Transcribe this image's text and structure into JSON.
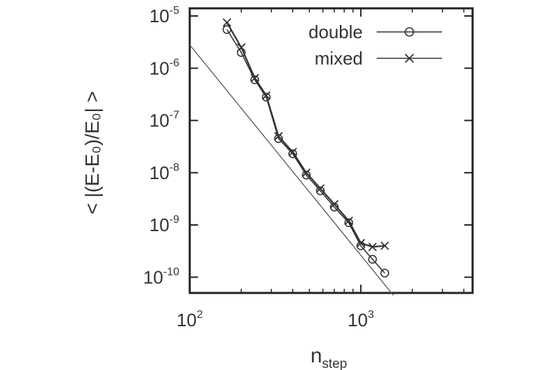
{
  "chart_data": {
    "type": "line",
    "xscale": "log",
    "yscale": "log",
    "xlim": [
      100,
      4500
    ],
    "ylim": [
      5e-11,
      1.4e-05
    ],
    "xticks": [
      {
        "value": 100,
        "base": "10",
        "exp": "2"
      },
      {
        "value": 1000,
        "base": "10",
        "exp": "3"
      }
    ],
    "yticks": [
      {
        "value": 1e-05,
        "base": "10",
        "exp": "-5"
      },
      {
        "value": 1e-06,
        "base": "10",
        "exp": "-6"
      },
      {
        "value": 1e-07,
        "base": "10",
        "exp": "-7"
      },
      {
        "value": 1e-08,
        "base": "10",
        "exp": "-8"
      },
      {
        "value": 1e-09,
        "base": "10",
        "exp": "-9"
      },
      {
        "value": 1e-10,
        "base": "10",
        "exp": "-10"
      }
    ],
    "xlabel": {
      "main": "n",
      "sub": "step"
    },
    "ylabel": "< |(E-E₀)/E₀| >",
    "legend_position": "top-right",
    "grid": false,
    "series": [
      {
        "name": "double",
        "marker": "circle",
        "x": [
          165,
          200,
          240,
          280,
          330,
          400,
          480,
          580,
          700,
          850,
          1000,
          1170,
          1380
        ],
        "y": [
          5.5e-06,
          2e-06,
          6e-07,
          2.8e-07,
          4.5e-08,
          2.3e-08,
          9e-09,
          4.5e-09,
          2.2e-09,
          1.1e-09,
          4e-10,
          2.2e-10,
          1.2e-10
        ]
      },
      {
        "name": "mixed",
        "marker": "cross",
        "x": [
          165,
          200,
          240,
          280,
          330,
          400,
          480,
          580,
          700,
          850,
          1000,
          1170,
          1380
        ],
        "y": [
          7.5e-06,
          2.5e-06,
          6.5e-07,
          3e-07,
          5e-08,
          2.5e-08,
          1e-08,
          5e-09,
          2.5e-09,
          1.2e-09,
          4.5e-10,
          3.8e-10,
          4e-10
        ]
      }
    ],
    "reference_line": {
      "x": [
        100,
        1550
      ],
      "y": [
        2.8e-06,
        4.5e-11
      ]
    }
  }
}
